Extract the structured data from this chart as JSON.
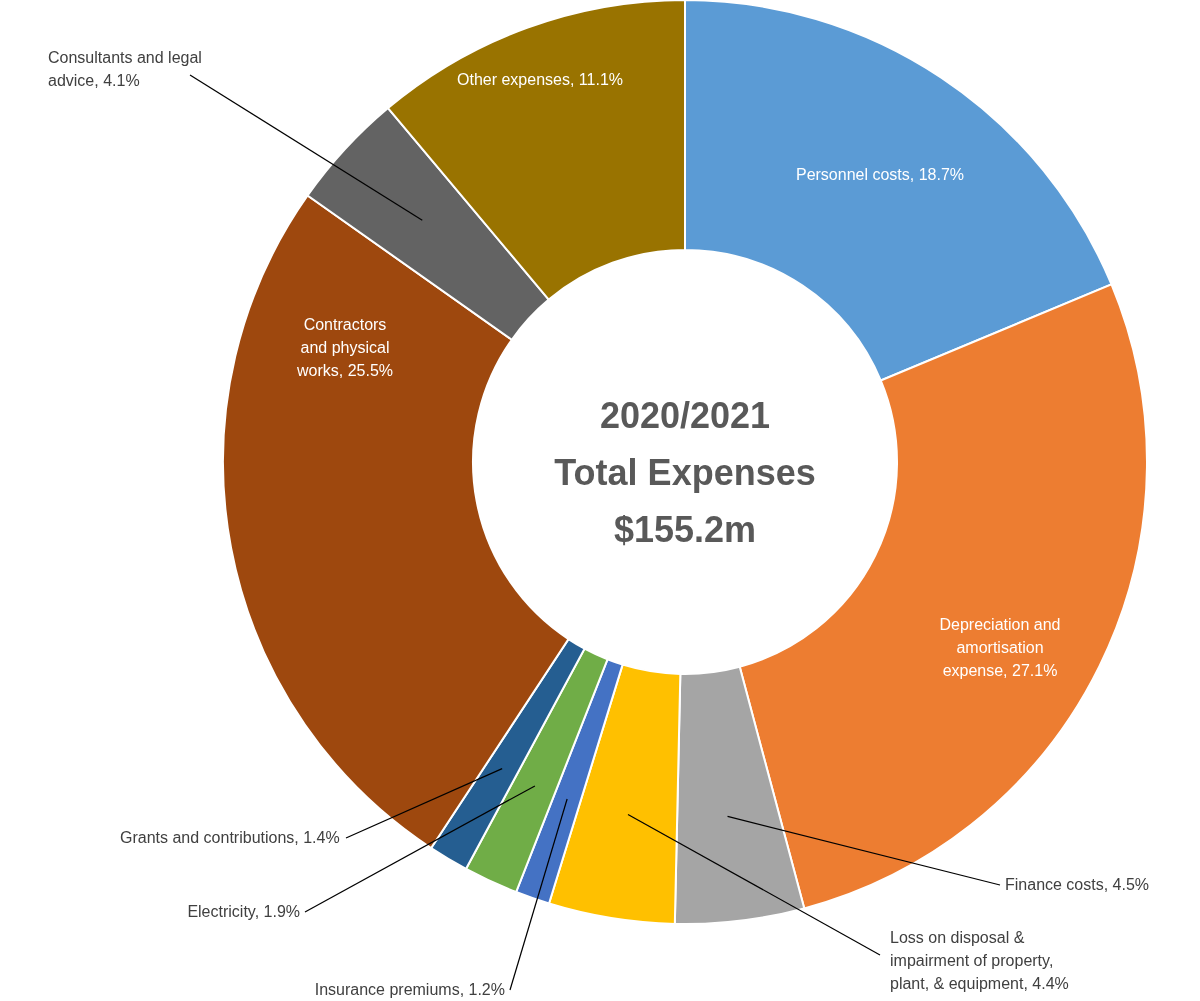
{
  "chart_data": {
    "type": "donut",
    "title": "2020/2021 Total Expenses",
    "subtitle": "$155.2m",
    "categories": [
      "Personnel costs",
      "Depreciation and amortisation expense",
      "Finance costs",
      "Loss on disposal & impairment of property, plant, & equipment",
      "Insurance premiums",
      "Electricity",
      "Grants and contributions",
      "Contractors and physical works",
      "Consultants and legal advice",
      "Other expenses"
    ],
    "values": [
      18.7,
      27.1,
      4.5,
      4.4,
      1.2,
      1.9,
      1.4,
      25.5,
      4.1,
      11.1
    ],
    "colors": [
      "#5b9bd5",
      "#ed7d31",
      "#a5a5a5",
      "#ffc000",
      "#4472c4",
      "#70ad47",
      "#255e91",
      "#9e480e",
      "#636363",
      "#997300"
    ],
    "value_labels": [
      "18.7%",
      "27.1%",
      "4.5%",
      "4.4%",
      "1.2%",
      "1.9%",
      "1.4%",
      "25.5%",
      "4.1%",
      "11.1%"
    ]
  }
}
